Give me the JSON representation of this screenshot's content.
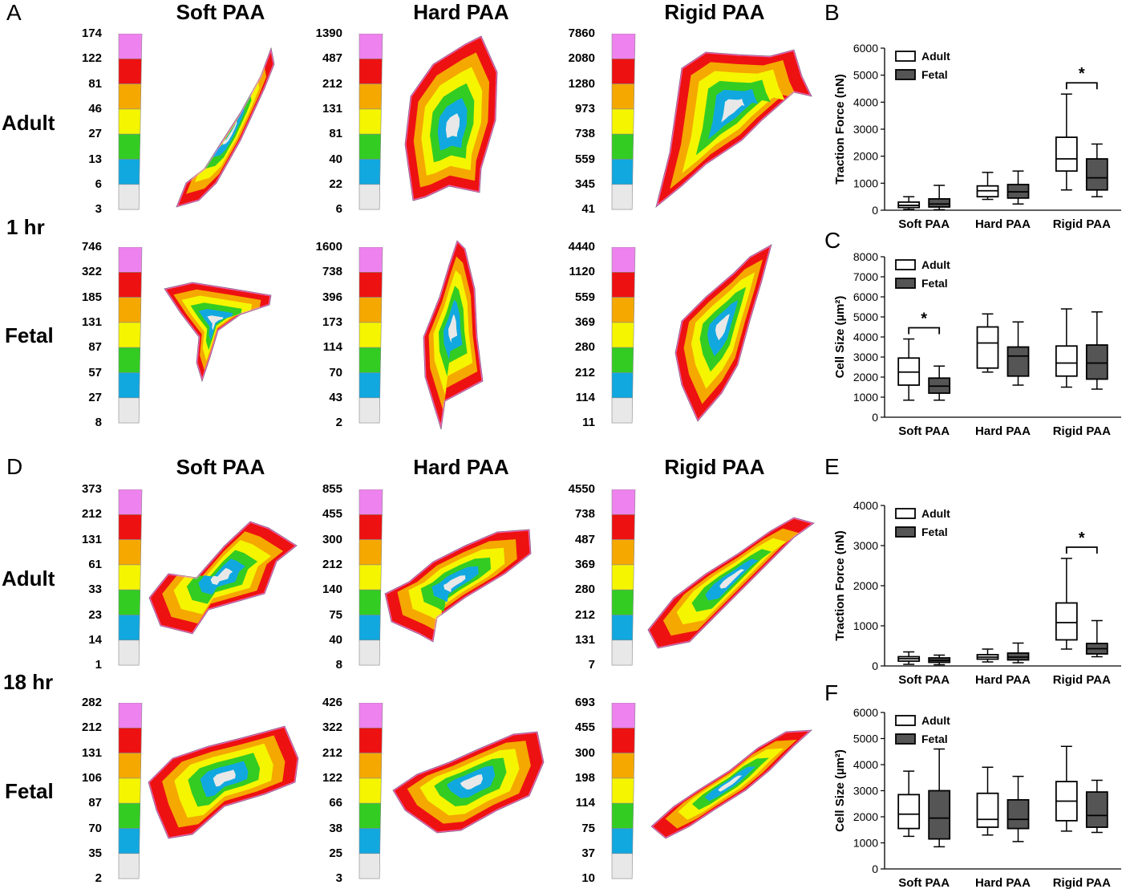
{
  "panels": {
    "A": "A",
    "B": "B",
    "C": "C",
    "D": "D",
    "E": "E",
    "F": "F"
  },
  "columns": [
    "Soft PAA",
    "Hard PAA",
    "Rigid PAA"
  ],
  "rows": {
    "adult": "Adult",
    "fetal": "Fetal"
  },
  "times": {
    "t1": "1 hr",
    "t18": "18 hr"
  },
  "palette": [
    "#ee82ee",
    "#ee1111",
    "#f5a800",
    "#f5f500",
    "#33cc22",
    "#11a8e0",
    "#e8e8e8"
  ],
  "scales": {
    "A_adult": [
      [
        "174",
        "122",
        "81",
        "46",
        "27",
        "13",
        "6",
        "3"
      ],
      [
        "1390",
        "487",
        "212",
        "131",
        "81",
        "40",
        "22",
        "6"
      ],
      [
        "7860",
        "2080",
        "1280",
        "973",
        "738",
        "559",
        "345",
        "41"
      ]
    ],
    "A_fetal": [
      [
        "746",
        "322",
        "185",
        "131",
        "87",
        "57",
        "27",
        "8"
      ],
      [
        "1600",
        "738",
        "396",
        "173",
        "114",
        "70",
        "43",
        "2"
      ],
      [
        "4440",
        "1120",
        "559",
        "369",
        "280",
        "212",
        "114",
        "11"
      ]
    ],
    "D_adult": [
      [
        "373",
        "212",
        "131",
        "61",
        "33",
        "23",
        "14",
        "1"
      ],
      [
        "855",
        "455",
        "300",
        "212",
        "140",
        "75",
        "40",
        "8"
      ],
      [
        "4550",
        "738",
        "487",
        "369",
        "280",
        "212",
        "131",
        "7"
      ]
    ],
    "D_fetal": [
      [
        "282",
        "212",
        "131",
        "106",
        "87",
        "70",
        "35",
        "2"
      ],
      [
        "426",
        "322",
        "212",
        "122",
        "66",
        "38",
        "25",
        "3"
      ],
      [
        "693",
        "455",
        "300",
        "198",
        "114",
        "75",
        "37",
        "10"
      ]
    ]
  },
  "chart_data": [
    {
      "panel": "B",
      "type": "box",
      "title": "",
      "xlabel": "",
      "ylabel": "Traction Force (nN)",
      "ylim": [
        0,
        6000
      ],
      "yticks": [
        "0",
        "1000",
        "2000",
        "3000",
        "4000",
        "5000",
        "6000"
      ],
      "categories": [
        "Soft PAA",
        "Hard PAA",
        "Rigid PAA"
      ],
      "legend": [
        "Adult",
        "Fetal"
      ],
      "legend_position": "top-left",
      "series": [
        {
          "name": "Adult",
          "color": "#ffffff",
          "boxes": [
            [
              30,
              100,
              180,
              300,
              500
            ],
            [
              400,
              500,
              720,
              900,
              1400
            ],
            [
              750,
              1450,
              1900,
              2700,
              4300
            ]
          ]
        },
        {
          "name": "Fetal",
          "color": "#555555",
          "boxes": [
            [
              20,
              120,
              230,
              420,
              920
            ],
            [
              230,
              450,
              680,
              950,
              1450
            ],
            [
              500,
              750,
              1200,
              1900,
              2450
            ]
          ]
        }
      ],
      "significance": [
        {
          "category": "Rigid PAA",
          "label": "*"
        }
      ]
    },
    {
      "panel": "C",
      "type": "box",
      "title": "",
      "xlabel": "",
      "ylabel": "Cell Size (µm²)",
      "ylim": [
        0,
        8000
      ],
      "yticks": [
        "0",
        "1000",
        "2000",
        "3000",
        "4000",
        "5000",
        "6000",
        "7000",
        "8000"
      ],
      "categories": [
        "Soft PAA",
        "Hard PAA",
        "Rigid PAA"
      ],
      "legend": [
        "Adult",
        "Fetal"
      ],
      "legend_position": "top-left",
      "series": [
        {
          "name": "Adult",
          "color": "#ffffff",
          "boxes": [
            [
              850,
              1600,
              2250,
              2950,
              3900
            ],
            [
              2250,
              2450,
              3700,
              4500,
              5150
            ],
            [
              1500,
              2050,
              2700,
              3550,
              5400
            ]
          ]
        },
        {
          "name": "Fetal",
          "color": "#555555",
          "boxes": [
            [
              850,
              1200,
              1550,
              1950,
              2550
            ],
            [
              1600,
              2050,
              3050,
              3500,
              4750
            ],
            [
              1400,
              1900,
              2700,
              3600,
              5250
            ]
          ]
        }
      ],
      "significance": [
        {
          "category": "Soft PAA",
          "label": "*"
        }
      ]
    },
    {
      "panel": "E",
      "type": "box",
      "title": "",
      "xlabel": "",
      "ylabel": "Traction Force (nN)",
      "ylim": [
        0,
        4000
      ],
      "yticks": [
        "0",
        "1000",
        "2000",
        "3000",
        "4000"
      ],
      "categories": [
        "Soft PAA",
        "Hard PAA",
        "Rigid PAA"
      ],
      "legend": [
        "Adult",
        "Fetal"
      ],
      "legend_position": "top-left",
      "series": [
        {
          "name": "Adult",
          "color": "#ffffff",
          "boxes": [
            [
              40,
              120,
              180,
              230,
              350
            ],
            [
              100,
              170,
              220,
              280,
              420
            ],
            [
              420,
              650,
              1080,
              1570,
              2680
            ]
          ]
        },
        {
          "name": "Fetal",
          "color": "#555555",
          "boxes": [
            [
              30,
              90,
              140,
              200,
              270
            ],
            [
              80,
              150,
              220,
              320,
              570
            ],
            [
              230,
              300,
              430,
              560,
              1130
            ]
          ]
        }
      ],
      "significance": [
        {
          "category": "Rigid PAA",
          "label": "*"
        }
      ]
    },
    {
      "panel": "F",
      "type": "box",
      "title": "",
      "xlabel": "",
      "ylabel": "Cell Size (µm²)",
      "ylim": [
        0,
        6000
      ],
      "yticks": [
        "0",
        "1000",
        "2000",
        "3000",
        "4000",
        "5000",
        "6000"
      ],
      "categories": [
        "Soft PAA",
        "Hard PAA",
        "Rigid PAA"
      ],
      "legend": [
        "Adult",
        "Fetal"
      ],
      "legend_position": "top-left",
      "series": [
        {
          "name": "Adult",
          "color": "#ffffff",
          "boxes": [
            [
              1250,
              1550,
              2100,
              2850,
              3750
            ],
            [
              1300,
              1600,
              1900,
              2900,
              3900
            ],
            [
              1450,
              1850,
              2600,
              3350,
              4700
            ]
          ]
        },
        {
          "name": "Fetal",
          "color": "#555555",
          "boxes": [
            [
              850,
              1150,
              1950,
              3000,
              4600
            ],
            [
              1050,
              1550,
              1900,
              2650,
              3550
            ],
            [
              1400,
              1600,
              2050,
              2950,
              3400
            ]
          ]
        }
      ],
      "significance": []
    }
  ]
}
